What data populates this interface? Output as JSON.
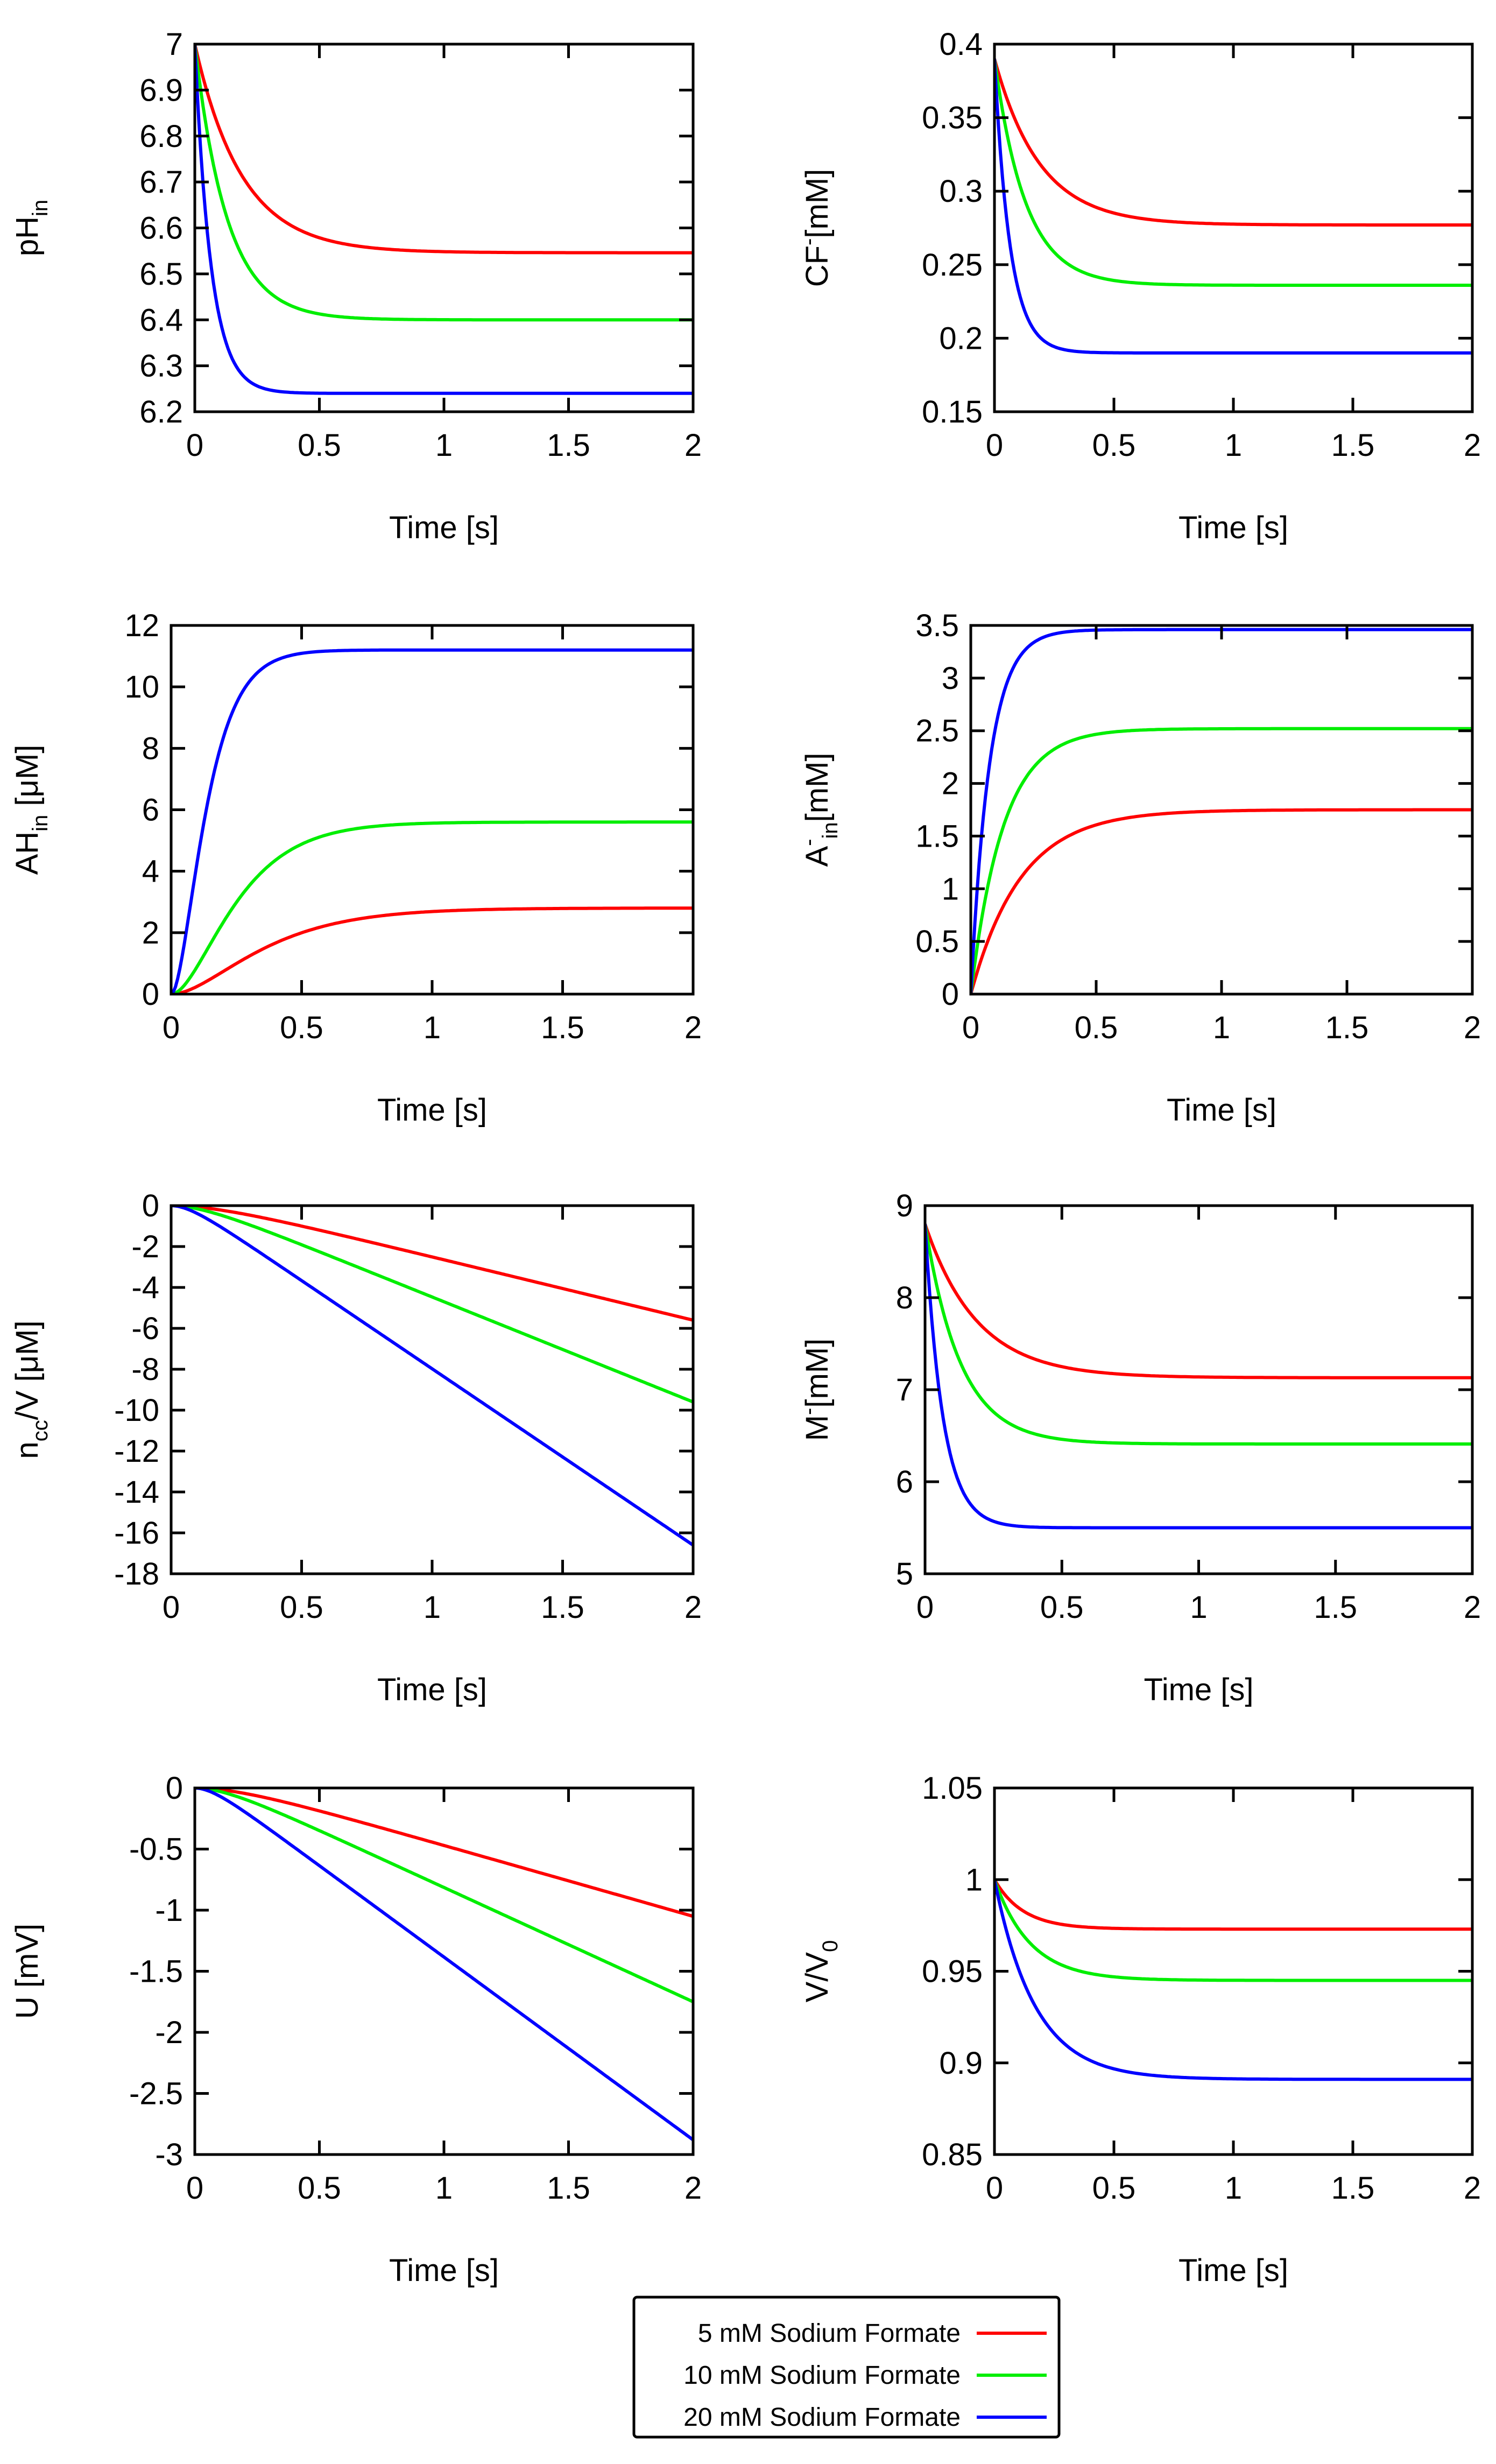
{
  "series": [
    {
      "name": "5 mM Sodium Formate",
      "color": "#ff0000"
    },
    {
      "name": "10 mM Sodium Formate",
      "color": "#00ee00"
    },
    {
      "name": "20 mM Sodium Formate",
      "color": "#0000ff"
    }
  ],
  "chart_data": [
    {
      "type": "line",
      "id": "ph-in",
      "ylabel": {
        "main": "pH",
        "sub": "in",
        "rest": ""
      },
      "xlabel": "Time [s]",
      "xlim": [
        0,
        2
      ],
      "ylim": [
        6.2,
        7.0
      ],
      "xticks": [
        "0",
        "0.5",
        "1",
        "1.5",
        "2"
      ],
      "yticks": [
        "6.2",
        "6.3",
        "6.4",
        "6.5",
        "6.6",
        "6.7",
        "6.8",
        "6.9",
        "7"
      ],
      "curves": [
        {
          "kind": "exp",
          "start": 7.0,
          "end": 6.546,
          "tau": 0.19
        },
        {
          "kind": "exp",
          "start": 7.0,
          "end": 6.4,
          "tau": 0.13
        },
        {
          "kind": "exp",
          "start": 7.0,
          "end": 6.24,
          "tau": 0.065
        }
      ]
    },
    {
      "type": "line",
      "id": "cf",
      "ylabel": {
        "main": "CF",
        "sup": "-",
        "rest": "[mM]"
      },
      "xlabel": "Time [s]",
      "xlim": [
        0,
        2
      ],
      "ylim": [
        0.15,
        0.4
      ],
      "xticks": [
        "0",
        "0.5",
        "1",
        "1.5",
        "2"
      ],
      "yticks": [
        "0.15",
        "0.2",
        "0.25",
        "0.3",
        "0.35",
        "0.4"
      ],
      "curves": [
        {
          "kind": "exp",
          "start": 0.39,
          "end": 0.277,
          "tau": 0.19
        },
        {
          "kind": "exp",
          "start": 0.39,
          "end": 0.236,
          "tau": 0.13
        },
        {
          "kind": "exp",
          "start": 0.39,
          "end": 0.19,
          "tau": 0.065
        }
      ]
    },
    {
      "type": "line",
      "id": "ah-in",
      "ylabel": {
        "main": "AH",
        "sub": "in",
        "rest": " [μM]"
      },
      "xlabel": "Time [s]",
      "xlim": [
        0,
        2
      ],
      "ylim": [
        0,
        12
      ],
      "xticks": [
        "0",
        "0.5",
        "1",
        "1.5",
        "2"
      ],
      "yticks": [
        "0",
        "2",
        "4",
        "6",
        "8",
        "10",
        "12"
      ],
      "curves": [
        {
          "kind": "sig",
          "start": 0,
          "end": 2.8,
          "tau": 0.2
        },
        {
          "kind": "sig",
          "start": 0,
          "end": 5.6,
          "tau": 0.14
        },
        {
          "kind": "sig",
          "start": 0,
          "end": 11.2,
          "tau": 0.075
        }
      ]
    },
    {
      "type": "line",
      "id": "a-in",
      "ylabel": {
        "main": "A",
        "sup": "-",
        "sub": "in",
        "rest": "[mM]"
      },
      "xlabel": "Time [s]",
      "xlim": [
        0,
        2
      ],
      "ylim": [
        0,
        3.5
      ],
      "xticks": [
        "0",
        "0.5",
        "1",
        "1.5",
        "2"
      ],
      "yticks": [
        "0",
        "0.5",
        "1",
        "1.5",
        "2",
        "2.5",
        "3",
        "3.5"
      ],
      "curves": [
        {
          "kind": "exp",
          "start": 0,
          "end": 1.75,
          "tau": 0.2
        },
        {
          "kind": "exp",
          "start": 0,
          "end": 2.52,
          "tau": 0.13
        },
        {
          "kind": "exp",
          "start": 0,
          "end": 3.46,
          "tau": 0.075
        }
      ]
    },
    {
      "type": "line",
      "id": "ncc",
      "ylabel": {
        "main": "n",
        "sub": "cc",
        "rest": "/V [μM]"
      },
      "xlabel": "Time [s]",
      "xlim": [
        0,
        2
      ],
      "ylim": [
        -18,
        0
      ],
      "xticks": [
        "0",
        "0.5",
        "1",
        "1.5",
        "2"
      ],
      "yticks": [
        "-18",
        "-16",
        "-14",
        "-12",
        "-10",
        "-8",
        "-6",
        "-4",
        "-2",
        "0"
      ],
      "curves": [
        {
          "kind": "ramp",
          "start": 0,
          "end": -5.6,
          "tau": 0.19
        },
        {
          "kind": "ramp",
          "start": 0,
          "end": -9.6,
          "tau": 0.13
        },
        {
          "kind": "ramp",
          "start": 0,
          "end": -16.6,
          "tau": 0.075
        }
      ]
    },
    {
      "type": "line",
      "id": "m",
      "ylabel": {
        "main": "M",
        "sup": "-",
        "rest": "[mM]"
      },
      "xlabel": "Time [s]",
      "xlim": [
        0,
        2
      ],
      "ylim": [
        5,
        9
      ],
      "xticks": [
        "0",
        "0.5",
        "1",
        "1.5",
        "2"
      ],
      "yticks": [
        "5",
        "6",
        "7",
        "8",
        "9"
      ],
      "curves": [
        {
          "kind": "exp",
          "start": 8.8,
          "end": 7.13,
          "tau": 0.19
        },
        {
          "kind": "exp",
          "start": 8.8,
          "end": 6.41,
          "tau": 0.13
        },
        {
          "kind": "exp",
          "start": 8.8,
          "end": 5.5,
          "tau": 0.065
        }
      ]
    },
    {
      "type": "line",
      "id": "u",
      "ylabel": {
        "main": "U [mV]",
        "rest": ""
      },
      "xlabel": "Time [s]",
      "xlim": [
        0,
        2
      ],
      "ylim": [
        -3,
        0
      ],
      "xticks": [
        "0",
        "0.5",
        "1",
        "1.5",
        "2"
      ],
      "yticks": [
        "-3",
        "-2.5",
        "-2",
        "-1.5",
        "-1",
        "-0.5",
        "0"
      ],
      "curves": [
        {
          "kind": "ramp",
          "start": 0,
          "end": -1.05,
          "tau": 0.19
        },
        {
          "kind": "ramp",
          "start": 0,
          "end": -1.75,
          "tau": 0.13
        },
        {
          "kind": "ramp",
          "start": 0,
          "end": -2.88,
          "tau": 0.075
        }
      ]
    },
    {
      "type": "line",
      "id": "v",
      "ylabel": {
        "main": "V/V",
        "sub": "0",
        "rest": ""
      },
      "xlabel": "Time [s]",
      "xlim": [
        0,
        2
      ],
      "ylim": [
        0.85,
        1.05
      ],
      "xticks": [
        "0",
        "0.5",
        "1",
        "1.5",
        "2"
      ],
      "yticks": [
        "0.85",
        "0.9",
        "0.95",
        "1",
        "1.05"
      ],
      "curves": [
        {
          "kind": "exp",
          "start": 1.0,
          "end": 0.973,
          "tau": 0.12
        },
        {
          "kind": "exp",
          "start": 1.0,
          "end": 0.945,
          "tau": 0.15
        },
        {
          "kind": "exp",
          "start": 1.0,
          "end": 0.891,
          "tau": 0.17
        }
      ]
    }
  ]
}
